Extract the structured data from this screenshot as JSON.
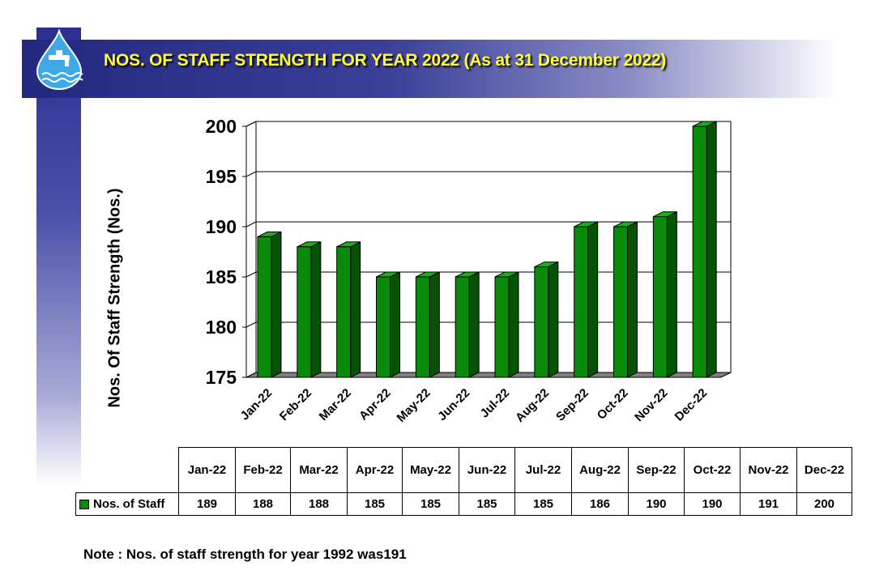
{
  "title": "NOS. OF STAFF STRENGTH FOR YEAR 2022 (As at 31 December 2022)",
  "note": "Note : Nos. of staff strength for year 1992 was191",
  "colors": {
    "bar_front": "#0a8a0a",
    "bar_side": "#045404",
    "bar_top": "#17b017",
    "title_text": "#ffff33",
    "header_bg": "#2b2f8f"
  },
  "table": {
    "row_label": "Nos. of Staff",
    "headers": [
      "Jan-22",
      "Feb-22",
      "Mar-22",
      "Apr-22",
      "May-22",
      "Jun-22",
      "Jul-22",
      "Aug-22",
      "Sep-22",
      "Oct-22",
      "Nov-22",
      "Dec-22"
    ],
    "values": [
      "189",
      "188",
      "188",
      "185",
      "185",
      "185",
      "185",
      "186",
      "190",
      "190",
      "191",
      "200"
    ]
  },
  "chart_data": {
    "type": "bar",
    "title": "",
    "xlabel": "",
    "ylabel": "Nos. Of Staff Strength (Nos.)",
    "ylim": [
      175,
      200
    ],
    "yticks": [
      "175",
      "180",
      "185",
      "190",
      "195",
      "200"
    ],
    "grid": true,
    "categories": [
      "Jan-22",
      "Feb-22",
      "Mar-22",
      "Apr-22",
      "May-22",
      "Jun-22",
      "Jul-22",
      "Aug-22",
      "Sep-22",
      "Oct-22",
      "Nov-22",
      "Dec-22"
    ],
    "series": [
      {
        "name": "Nos. of Staff",
        "values": [
          189,
          188,
          188,
          185,
          185,
          185,
          185,
          186,
          190,
          190,
          191,
          200
        ]
      }
    ]
  }
}
